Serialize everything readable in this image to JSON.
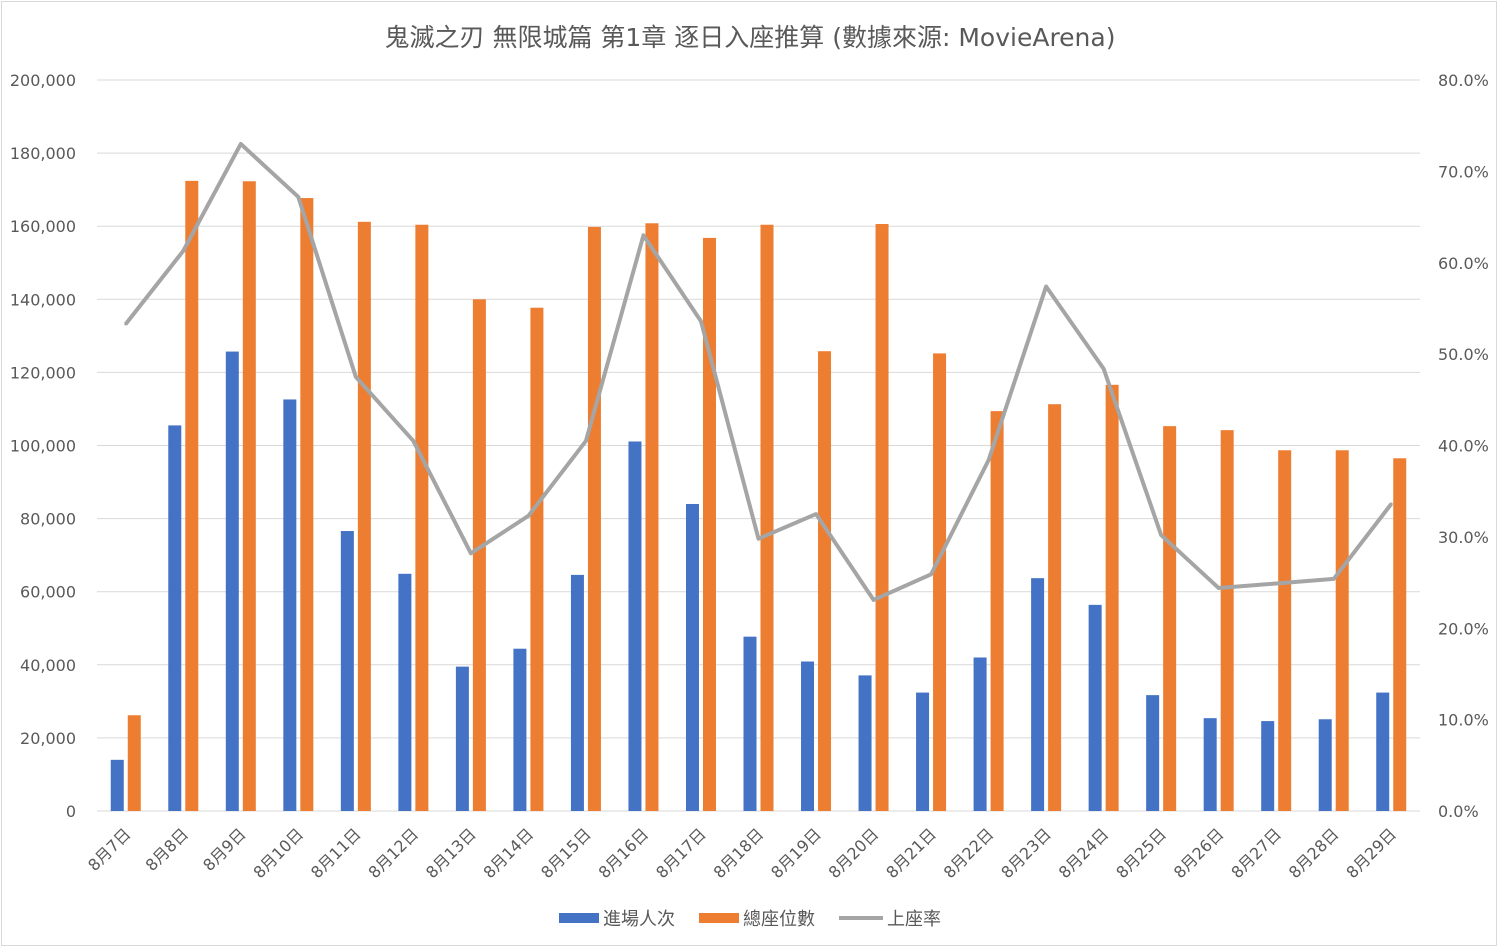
{
  "colors": {
    "attendance": "#4472c4",
    "seats": "#ed7d31",
    "occupancy": "#a5a5a5",
    "grid": "#d9d9d9",
    "text": "#595959"
  },
  "chart_data": {
    "type": "bar",
    "title": "鬼滅之刃 無限城篇 第1章 逐日入座推算 (數據來源: MovieArena)",
    "categories": [
      "8月7日",
      "8月8日",
      "8月9日",
      "8月10日",
      "8月11日",
      "8月12日",
      "8月13日",
      "8月14日",
      "8月15日",
      "8月16日",
      "8月17日",
      "8月18日",
      "8月19日",
      "8月20日",
      "8月21日",
      "8月22日",
      "8月23日",
      "8月24日",
      "8月25日",
      "8月26日",
      "8月27日",
      "8月28日",
      "8月29日"
    ],
    "y_ticks": [
      "0",
      "20,000",
      "40,000",
      "60,000",
      "80,000",
      "100,000",
      "120,000",
      "140,000",
      "160,000",
      "180,000",
      "200,000"
    ],
    "y2_ticks": [
      "0.0%",
      "10.0%",
      "20.0%",
      "30.0%",
      "40.0%",
      "50.0%",
      "60.0%",
      "70.0%",
      "80.0%"
    ],
    "ylim": [
      0,
      200000
    ],
    "y2lim": [
      0,
      0.8
    ],
    "grid": true,
    "legend_position": "bottom",
    "series": [
      {
        "name": "進場人次",
        "type": "bar",
        "axis": "left",
        "values": [
          14000,
          105500,
          125700,
          112600,
          76600,
          64900,
          39500,
          44400,
          64600,
          101100,
          84000,
          47700,
          40900,
          37100,
          32400,
          42000,
          63700,
          56400,
          31700,
          25400,
          24600,
          25100,
          32400
        ]
      },
      {
        "name": "總座位數",
        "type": "bar",
        "axis": "left",
        "values": [
          26200,
          172400,
          172300,
          167700,
          161200,
          160400,
          140000,
          137700,
          159800,
          160800,
          156800,
          160400,
          125800,
          160600,
          125200,
          109400,
          111300,
          116600,
          105300,
          104200,
          98700,
          98700,
          96500
        ]
      },
      {
        "name": "上座率",
        "type": "line",
        "axis": "right",
        "values": [
          0.533,
          0.613,
          0.73,
          0.672,
          0.475,
          0.405,
          0.282,
          0.323,
          0.405,
          0.63,
          0.536,
          0.298,
          0.325,
          0.231,
          0.259,
          0.384,
          0.574,
          0.484,
          0.302,
          0.244,
          0.249,
          0.254,
          0.336
        ]
      }
    ]
  }
}
